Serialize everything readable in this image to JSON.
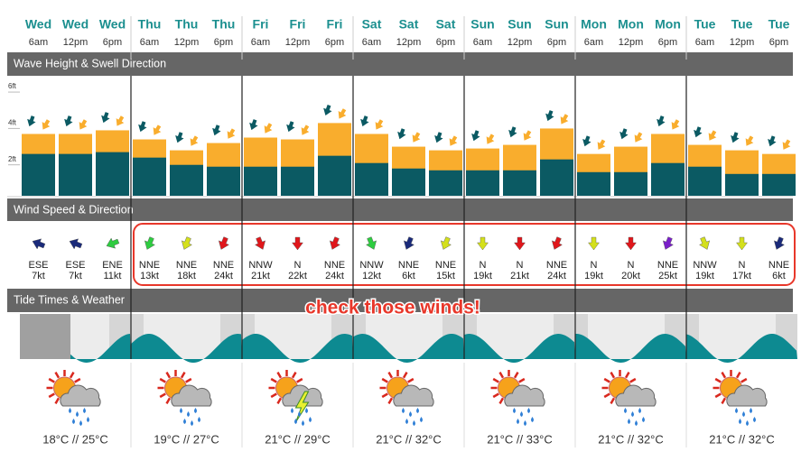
{
  "sections": [
    "Wave Height & Swell Direction",
    "Wind Speed & Direction",
    "Tide Times & Weather"
  ],
  "wave_axis": {
    "ylim": [
      0,
      6.5
    ],
    "ticks": [
      {
        "value": 6,
        "label": "6ft"
      },
      {
        "value": 4,
        "label": "4ft"
      },
      {
        "value": 2,
        "label": "2ft"
      }
    ],
    "total_color": "#f9ad2d",
    "swell_color": "#0b5a63"
  },
  "columns": [
    {
      "day": "Wed",
      "time": "6am",
      "wave": {
        "total": 3.4,
        "swell": 2.3
      },
      "wind": {
        "dir": "ESE",
        "speed": "7kt",
        "color": "#1a2a7a",
        "deg": 112
      }
    },
    {
      "day": "Wed",
      "time": "12pm",
      "wave": {
        "total": 3.4,
        "swell": 2.3
      },
      "wind": {
        "dir": "ESE",
        "speed": "7kt",
        "color": "#1a2a7a",
        "deg": 112
      }
    },
    {
      "day": "Wed",
      "time": "6pm",
      "wave": {
        "total": 3.6,
        "swell": 2.4
      },
      "wind": {
        "dir": "ENE",
        "speed": "11kt",
        "color": "#2ecc40",
        "deg": 68
      }
    },
    {
      "day": "Thu",
      "time": "6am",
      "wave": {
        "total": 3.1,
        "swell": 2.1
      },
      "wind": {
        "dir": "NNE",
        "speed": "13kt",
        "color": "#2ecc40",
        "deg": 22
      }
    },
    {
      "day": "Thu",
      "time": "12pm",
      "wave": {
        "total": 2.5,
        "swell": 1.7
      },
      "wind": {
        "dir": "NNE",
        "speed": "18kt",
        "color": "#d4e01c",
        "deg": 22
      }
    },
    {
      "day": "Thu",
      "time": "6pm",
      "wave": {
        "total": 2.9,
        "swell": 1.6
      },
      "wind": {
        "dir": "NNE",
        "speed": "24kt",
        "color": "#e0161b",
        "deg": 22
      }
    },
    {
      "day": "Fri",
      "time": "6am",
      "wave": {
        "total": 3.2,
        "swell": 1.6
      },
      "wind": {
        "dir": "NNW",
        "speed": "21kt",
        "color": "#e0161b",
        "deg": 338
      }
    },
    {
      "day": "Fri",
      "time": "12pm",
      "wave": {
        "total": 3.1,
        "swell": 1.6
      },
      "wind": {
        "dir": "N",
        "speed": "22kt",
        "color": "#e0161b",
        "deg": 0
      }
    },
    {
      "day": "Fri",
      "time": "6pm",
      "wave": {
        "total": 4.0,
        "swell": 2.2
      },
      "wind": {
        "dir": "NNE",
        "speed": "24kt",
        "color": "#e0161b",
        "deg": 22
      }
    },
    {
      "day": "Sat",
      "time": "6am",
      "wave": {
        "total": 3.4,
        "swell": 1.8
      },
      "wind": {
        "dir": "NNW",
        "speed": "12kt",
        "color": "#2ecc40",
        "deg": 338
      }
    },
    {
      "day": "Sat",
      "time": "12pm",
      "wave": {
        "total": 2.7,
        "swell": 1.5
      },
      "wind": {
        "dir": "NNE",
        "speed": "6kt",
        "color": "#1a2a7a",
        "deg": 22
      }
    },
    {
      "day": "Sat",
      "time": "6pm",
      "wave": {
        "total": 2.5,
        "swell": 1.4
      },
      "wind": {
        "dir": "NNE",
        "speed": "15kt",
        "color": "#d4e01c",
        "deg": 22
      }
    },
    {
      "day": "Sun",
      "time": "6am",
      "wave": {
        "total": 2.6,
        "swell": 1.4
      },
      "wind": {
        "dir": "N",
        "speed": "19kt",
        "color": "#d4e01c",
        "deg": 0
      }
    },
    {
      "day": "Sun",
      "time": "12pm",
      "wave": {
        "total": 2.8,
        "swell": 1.4
      },
      "wind": {
        "dir": "N",
        "speed": "21kt",
        "color": "#e0161b",
        "deg": 0
      }
    },
    {
      "day": "Sun",
      "time": "6pm",
      "wave": {
        "total": 3.7,
        "swell": 2.0
      },
      "wind": {
        "dir": "NNE",
        "speed": "24kt",
        "color": "#e0161b",
        "deg": 22
      }
    },
    {
      "day": "Mon",
      "time": "6am",
      "wave": {
        "total": 2.3,
        "swell": 1.3
      },
      "wind": {
        "dir": "N",
        "speed": "19kt",
        "color": "#d4e01c",
        "deg": 0
      }
    },
    {
      "day": "Mon",
      "time": "12pm",
      "wave": {
        "total": 2.7,
        "swell": 1.3
      },
      "wind": {
        "dir": "N",
        "speed": "20kt",
        "color": "#e0161b",
        "deg": 0
      }
    },
    {
      "day": "Mon",
      "time": "6pm",
      "wave": {
        "total": 3.4,
        "swell": 1.8
      },
      "wind": {
        "dir": "NNE",
        "speed": "25kt",
        "color": "#7a1fc9",
        "deg": 22
      }
    },
    {
      "day": "Tue",
      "time": "6am",
      "wave": {
        "total": 2.8,
        "swell": 1.6
      },
      "wind": {
        "dir": "NNW",
        "speed": "19kt",
        "color": "#d4e01c",
        "deg": 338
      }
    },
    {
      "day": "Tue",
      "time": "12pm",
      "wave": {
        "total": 2.5,
        "swell": 1.2
      },
      "wind": {
        "dir": "N",
        "speed": "17kt",
        "color": "#d4e01c",
        "deg": 0
      }
    },
    {
      "day": "Tue",
      "time": "6pm",
      "wave": {
        "total": 2.3,
        "swell": 1.2
      },
      "wind": {
        "dir": "NNE",
        "speed": "6kt",
        "color": "#1a2a7a",
        "deg": 22
      }
    }
  ],
  "weather": [
    {
      "icon": "rain",
      "temp": "18°C // 25°C"
    },
    {
      "icon": "rain",
      "temp": "19°C // 27°C"
    },
    {
      "icon": "storm",
      "temp": "21°C // 29°C"
    },
    {
      "icon": "rain",
      "temp": "21°C // 32°C"
    },
    {
      "icon": "rain",
      "temp": "21°C // 33°C"
    },
    {
      "icon": "rain",
      "temp": "21°C // 32°C"
    },
    {
      "icon": "rain",
      "temp": "21°C // 32°C"
    }
  ],
  "annotation": "check those winds!"
}
